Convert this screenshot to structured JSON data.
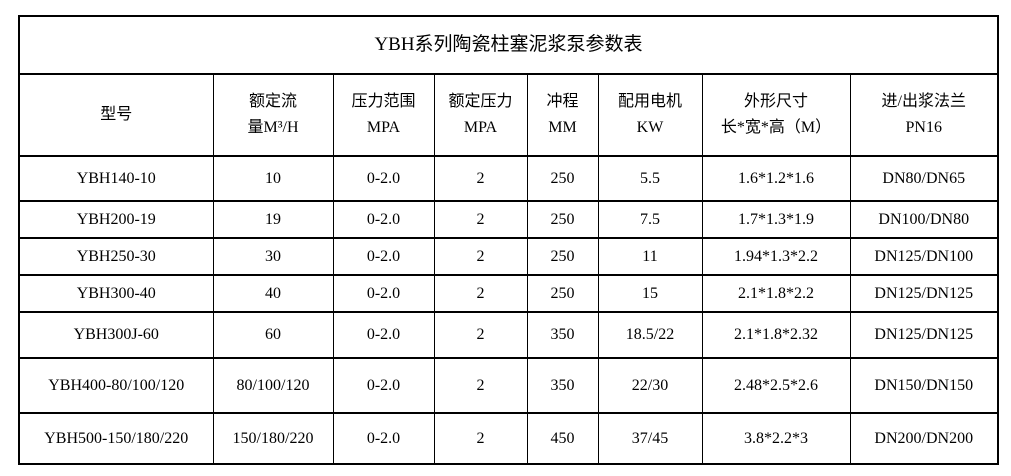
{
  "title": "YBH系列陶瓷柱塞泥浆泵参数表",
  "headers": [
    {
      "line1": "型号",
      "line2": ""
    },
    {
      "line1": "额定流",
      "line2": "量M³/H"
    },
    {
      "line1": "压力范围",
      "line2": "MPA"
    },
    {
      "line1": "额定压力",
      "line2": "MPA"
    },
    {
      "line1": "冲程",
      "line2": "MM"
    },
    {
      "line1": "配用电机",
      "line2": "KW"
    },
    {
      "line1": "外形尺寸",
      "line2": "长*宽*高（M）"
    },
    {
      "line1": "进/出浆法兰",
      "line2": "PN16"
    }
  ],
  "rows": [
    [
      "YBH140-10",
      "10",
      "0-2.0",
      "2",
      "250",
      "5.5",
      "1.6*1.2*1.6",
      "DN80/DN65"
    ],
    [
      "YBH200-19",
      "19",
      "0-2.0",
      "2",
      "250",
      "7.5",
      "1.7*1.3*1.9",
      "DN100/DN80"
    ],
    [
      "YBH250-30",
      "30",
      "0-2.0",
      "2",
      "250",
      "11",
      "1.94*1.3*2.2",
      "DN125/DN100"
    ],
    [
      "YBH300-40",
      "40",
      "0-2.0",
      "2",
      "250",
      "15",
      "2.1*1.8*2.2",
      "DN125/DN125"
    ],
    [
      "YBH300J-60",
      "60",
      "0-2.0",
      "2",
      "350",
      "18.5/22",
      "2.1*1.8*2.32",
      "DN125/DN125"
    ],
    [
      "YBH400-80/100/120",
      "80/100/120",
      "0-2.0",
      "2",
      "350",
      "22/30",
      "2.48*2.5*2.6",
      "DN150/DN150"
    ],
    [
      "YBH500-150/180/220",
      "150/180/220",
      "0-2.0",
      "2",
      "450",
      "37/45",
      "3.8*2.2*3",
      "DN200/DN200"
    ]
  ]
}
